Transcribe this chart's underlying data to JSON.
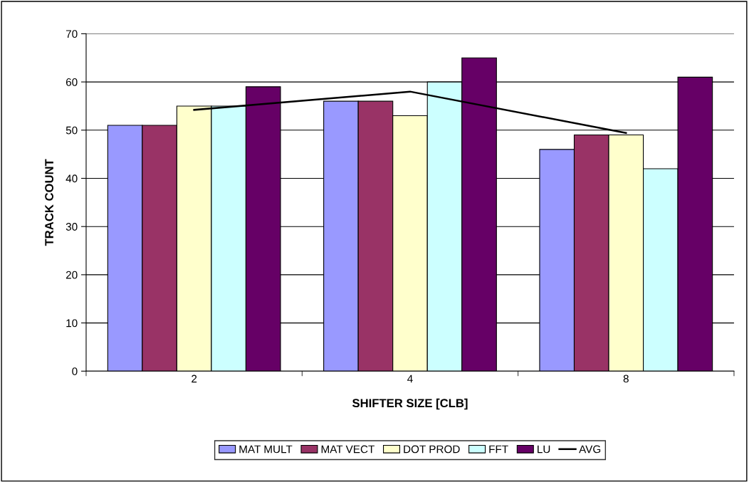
{
  "chart_data": {
    "type": "bar",
    "xlabel": "SHIFTER SIZE [CLB]",
    "ylabel": "TRACK COUNT",
    "categories": [
      "2",
      "4",
      "8"
    ],
    "series": [
      {
        "name": "MAT MULT",
        "color": "#9999ff",
        "values": [
          51,
          56,
          46
        ]
      },
      {
        "name": "MAT VECT",
        "color": "#993366",
        "values": [
          51,
          56,
          49
        ]
      },
      {
        "name": "DOT PROD",
        "color": "#ffffcc",
        "values": [
          55,
          53,
          49
        ]
      },
      {
        "name": "FFT",
        "color": "#ccffff",
        "values": [
          55,
          60,
          42
        ]
      },
      {
        "name": "LU",
        "color": "#660066",
        "values": [
          59,
          65,
          61
        ]
      },
      {
        "name": "AVG",
        "color": "#000000",
        "type": "line",
        "values": [
          54.2,
          58,
          49.4
        ]
      }
    ],
    "ylim": [
      0,
      70
    ],
    "yticks": [
      0,
      10,
      20,
      30,
      40,
      50,
      60,
      70
    ],
    "grid": "y",
    "legend": "bottom"
  }
}
